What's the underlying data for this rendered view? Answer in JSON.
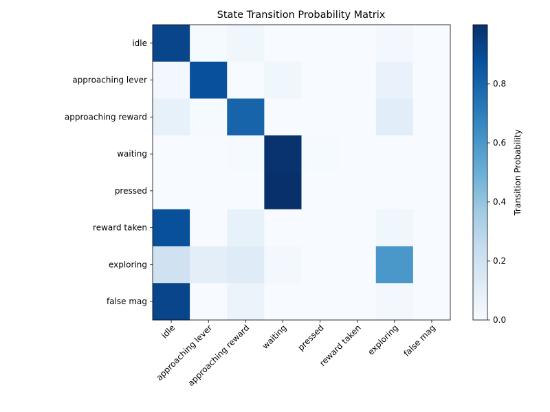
{
  "chart_data": {
    "type": "heatmap",
    "title": "State Transition Probability Matrix",
    "rows": [
      "idle",
      "approaching lever",
      "approaching reward",
      "waiting",
      "pressed",
      "reward taken",
      "exploring",
      "false mag"
    ],
    "columns": [
      "idle",
      "approaching lever",
      "approaching reward",
      "waiting",
      "pressed",
      "reward taken",
      "exploring",
      "false mag"
    ],
    "values": [
      [
        0.92,
        0.01,
        0.04,
        0.0,
        0.0,
        0.0,
        0.02,
        0.0
      ],
      [
        0.02,
        0.88,
        0.0,
        0.04,
        0.0,
        0.0,
        0.07,
        0.0
      ],
      [
        0.08,
        0.01,
        0.8,
        0.0,
        0.0,
        0.0,
        0.11,
        0.0
      ],
      [
        0.0,
        0.0,
        0.01,
        0.99,
        0.01,
        0.0,
        0.0,
        0.0
      ],
      [
        0.0,
        0.0,
        0.0,
        1.0,
        0.0,
        0.0,
        0.0,
        0.0
      ],
      [
        0.88,
        0.0,
        0.08,
        0.0,
        0.0,
        0.0,
        0.04,
        0.0
      ],
      [
        0.2,
        0.1,
        0.12,
        0.02,
        0.0,
        0.0,
        0.6,
        0.0
      ],
      [
        0.92,
        0.0,
        0.06,
        0.0,
        0.0,
        0.0,
        0.02,
        0.0
      ]
    ],
    "colormap": "Blues",
    "colorbar": {
      "label": "Transition Probability",
      "range": [
        0.0,
        1.0
      ],
      "ticks": [
        0.0,
        0.2,
        0.4,
        0.6,
        0.8
      ],
      "tick_labels": [
        "0.0",
        "0.2",
        "0.4",
        "0.6",
        "0.8"
      ]
    },
    "grid": false
  }
}
